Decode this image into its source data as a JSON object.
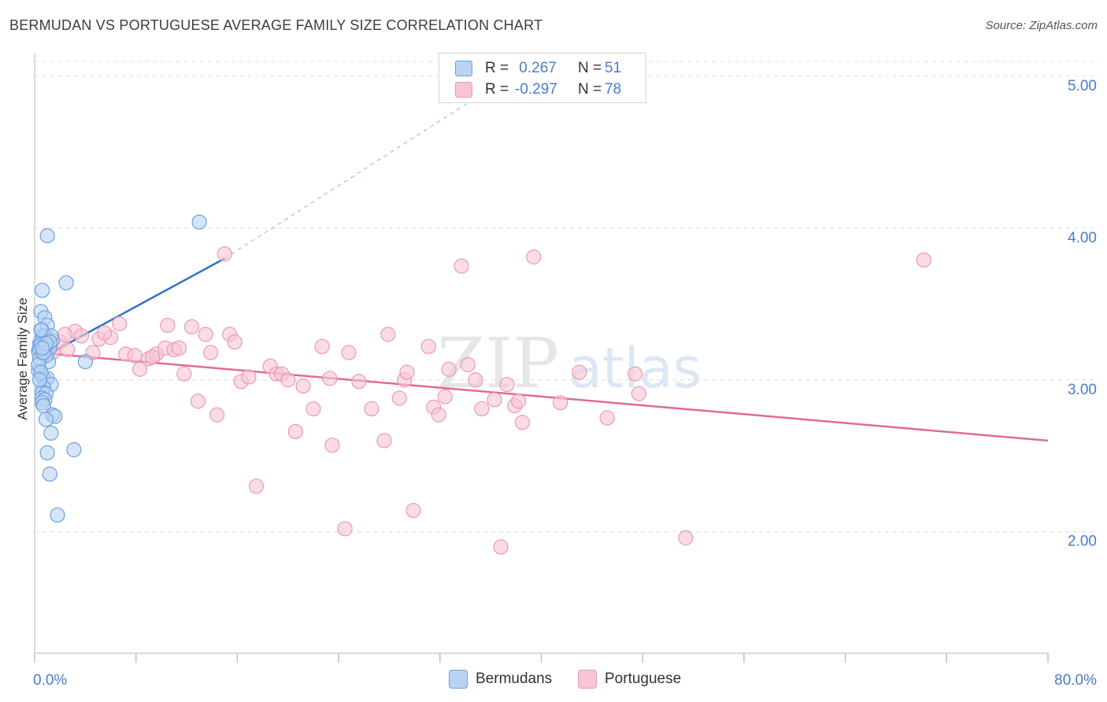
{
  "header": {
    "title": "BERMUDAN VS PORTUGUESE AVERAGE FAMILY SIZE CORRELATION CHART",
    "source": "Source: ZipAtlas.com"
  },
  "legend": {
    "r_label": "R =",
    "n_label": "N =",
    "rows": [
      {
        "r": " 0.267",
        "n": "51",
        "swatch": "#b8d3f3"
      },
      {
        "r": "-0.297",
        "n": "78",
        "swatch": "#f9c4d4"
      }
    ]
  },
  "series_labels": {
    "blue": "Bermudans",
    "pink": "Portuguese"
  },
  "watermark": {
    "zip": "ZIP",
    "atlas": "atlas"
  },
  "colors": {
    "blue_fill": "#b8d3f3",
    "blue_stroke": "#6f9fdc",
    "blue_line": "#2f6fcc",
    "pink_fill": "#f9c4d4",
    "pink_stroke": "#e99ab2",
    "pink_line": "#e06a97",
    "axis_text": "#4a7cc8",
    "grid": "#dcdcdc"
  },
  "chart_data": {
    "type": "scatter",
    "title": "BERMUDAN VS PORTUGUESE AVERAGE FAMILY SIZE CORRELATION CHART",
    "xlabel": "",
    "ylabel": "Average Family Size",
    "xlim": [
      0,
      80
    ],
    "ylim": [
      1.2,
      5.15
    ],
    "x_tick_labels": [
      {
        "value": 0,
        "label": "0.0%"
      },
      {
        "value": 80,
        "label": "80.0%"
      }
    ],
    "y_ticks": [
      {
        "value": 2.0,
        "label": "2.00"
      },
      {
        "value": 3.0,
        "label": "3.00"
      },
      {
        "value": 4.0,
        "label": "4.00"
      },
      {
        "value": 5.0,
        "label": "5.00"
      }
    ],
    "grid": "horizontal dashed",
    "legend_position": "top-center",
    "series": [
      {
        "name": "Bermudans",
        "r": 0.267,
        "n": 51,
        "trend": {
          "x": [
            0.2,
            15.0
          ],
          "y": [
            3.13,
            3.8
          ],
          "extended": {
            "x": [
              15.0,
              36.0
            ],
            "y": [
              3.8,
              4.92
            ]
          }
        },
        "points": [
          [
            0.3,
            3.06
          ],
          [
            0.4,
            3.24
          ],
          [
            0.3,
            3.19
          ],
          [
            0.5,
            3.26
          ],
          [
            0.4,
            3.2
          ],
          [
            0.6,
            3.59
          ],
          [
            0.5,
            3.45
          ],
          [
            0.8,
            3.41
          ],
          [
            0.6,
            3.33
          ],
          [
            0.9,
            3.29
          ],
          [
            1.0,
            3.36
          ],
          [
            0.7,
            3.29
          ],
          [
            0.5,
            3.23
          ],
          [
            1.2,
            3.21
          ],
          [
            1.4,
            3.26
          ],
          [
            1.3,
            3.29
          ],
          [
            1.1,
            3.12
          ],
          [
            0.9,
            3.16
          ],
          [
            0.6,
            3.03
          ],
          [
            0.8,
            3.0
          ],
          [
            1.0,
            3.01
          ],
          [
            1.3,
            2.97
          ],
          [
            0.7,
            2.95
          ],
          [
            0.6,
            2.92
          ],
          [
            0.9,
            2.91
          ],
          [
            0.6,
            2.88
          ],
          [
            0.8,
            2.87
          ],
          [
            0.6,
            2.85
          ],
          [
            0.7,
            2.83
          ],
          [
            1.4,
            2.77
          ],
          [
            1.6,
            2.76
          ],
          [
            0.9,
            2.74
          ],
          [
            1.3,
            2.65
          ],
          [
            1.0,
            2.52
          ],
          [
            3.1,
            2.54
          ],
          [
            1.2,
            2.38
          ],
          [
            1.8,
            2.11
          ],
          [
            1.0,
            3.95
          ],
          [
            2.5,
            3.64
          ],
          [
            13.0,
            4.04
          ],
          [
            4.0,
            3.12
          ],
          [
            0.4,
            3.14
          ],
          [
            0.5,
            3.33
          ],
          [
            0.8,
            3.22
          ],
          [
            0.3,
            3.1
          ],
          [
            0.5,
            3.05
          ],
          [
            1.2,
            3.25
          ],
          [
            0.4,
            3.0
          ],
          [
            0.7,
            3.18
          ],
          [
            0.9,
            3.24
          ],
          [
            0.6,
            3.21
          ]
        ]
      },
      {
        "name": "Portuguese",
        "r": -0.297,
        "n": 78,
        "trend": {
          "x": [
            0.2,
            80.0
          ],
          "y": [
            3.18,
            2.6
          ]
        },
        "points": [
          [
            1.4,
            3.18
          ],
          [
            2.0,
            3.25
          ],
          [
            2.6,
            3.2
          ],
          [
            3.2,
            3.32
          ],
          [
            3.7,
            3.29
          ],
          [
            4.6,
            3.18
          ],
          [
            5.1,
            3.27
          ],
          [
            6.0,
            3.28
          ],
          [
            6.7,
            3.37
          ],
          [
            7.2,
            3.17
          ],
          [
            7.9,
            3.16
          ],
          [
            8.3,
            3.07
          ],
          [
            9.0,
            3.14
          ],
          [
            9.6,
            3.17
          ],
          [
            10.3,
            3.21
          ],
          [
            10.5,
            3.36
          ],
          [
            11.0,
            3.2
          ],
          [
            11.4,
            3.21
          ],
          [
            11.8,
            3.04
          ],
          [
            12.4,
            3.35
          ],
          [
            12.9,
            2.86
          ],
          [
            13.5,
            3.3
          ],
          [
            13.9,
            3.18
          ],
          [
            14.4,
            2.77
          ],
          [
            15.0,
            3.83
          ],
          [
            15.4,
            3.3
          ],
          [
            15.8,
            3.25
          ],
          [
            16.3,
            2.99
          ],
          [
            16.9,
            3.02
          ],
          [
            17.5,
            2.3
          ],
          [
            18.6,
            3.09
          ],
          [
            19.1,
            3.04
          ],
          [
            19.5,
            3.04
          ],
          [
            20.0,
            3.0
          ],
          [
            20.6,
            2.66
          ],
          [
            21.2,
            2.96
          ],
          [
            22.0,
            2.81
          ],
          [
            22.7,
            3.22
          ],
          [
            23.3,
            3.01
          ],
          [
            23.5,
            2.57
          ],
          [
            24.5,
            2.02
          ],
          [
            24.8,
            3.18
          ],
          [
            25.6,
            2.99
          ],
          [
            26.6,
            2.81
          ],
          [
            27.6,
            2.6
          ],
          [
            27.9,
            3.3
          ],
          [
            28.8,
            2.88
          ],
          [
            29.2,
            3.0
          ],
          [
            29.4,
            3.05
          ],
          [
            29.9,
            2.14
          ],
          [
            31.1,
            3.22
          ],
          [
            31.5,
            2.82
          ],
          [
            31.9,
            2.77
          ],
          [
            32.4,
            2.89
          ],
          [
            32.7,
            3.07
          ],
          [
            33.7,
            3.75
          ],
          [
            34.2,
            3.1
          ],
          [
            34.8,
            3.0
          ],
          [
            35.3,
            2.81
          ],
          [
            36.3,
            2.87
          ],
          [
            36.8,
            1.9
          ],
          [
            37.3,
            2.97
          ],
          [
            37.9,
            2.83
          ],
          [
            38.2,
            2.86
          ],
          [
            38.5,
            2.72
          ],
          [
            39.4,
            3.81
          ],
          [
            41.5,
            2.85
          ],
          [
            43.0,
            3.05
          ],
          [
            45.2,
            2.75
          ],
          [
            47.4,
            3.04
          ],
          [
            47.7,
            2.91
          ],
          [
            51.4,
            1.96
          ],
          [
            70.2,
            3.79
          ],
          [
            1.0,
            3.2
          ],
          [
            2.4,
            3.3
          ],
          [
            5.5,
            3.31
          ],
          [
            0.8,
            3.17
          ],
          [
            9.3,
            3.15
          ]
        ]
      }
    ]
  }
}
